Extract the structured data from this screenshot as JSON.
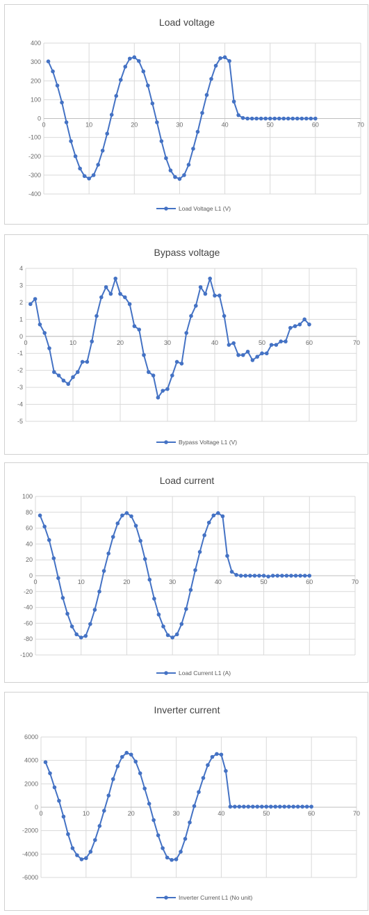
{
  "chart_data": [
    {
      "type": "line",
      "title": "Load voltage",
      "xlim": [
        0,
        70
      ],
      "xticks": [
        0,
        10,
        20,
        30,
        40,
        50,
        60,
        70
      ],
      "ylim": [
        -400,
        400
      ],
      "yticks": [
        400,
        300,
        200,
        100,
        0,
        -100,
        -200,
        -300,
        -400
      ],
      "ytick_labels": [
        "400",
        "300",
        "200",
        "100",
        "0",
        "-100",
        "-200",
        "-300",
        "-400"
      ],
      "grid": true,
      "legend_position": "bottom",
      "color": "#4472C4",
      "series": [
        {
          "name": "Load Voltage L1 (V)",
          "x": [
            1,
            2,
            3,
            4,
            5,
            6,
            7,
            8,
            9,
            10,
            11,
            12,
            13,
            14,
            15,
            16,
            17,
            18,
            19,
            20,
            21,
            22,
            23,
            24,
            25,
            26,
            27,
            28,
            29,
            30,
            31,
            32,
            33,
            34,
            35,
            36,
            37,
            38,
            39,
            40,
            41,
            42,
            43,
            44,
            45,
            46,
            47,
            48,
            49,
            50,
            51,
            52,
            53,
            54,
            55,
            56,
            57,
            58,
            59,
            60
          ],
          "y": [
            303,
            250,
            175,
            85,
            -20,
            -120,
            -200,
            -265,
            -305,
            -318,
            -300,
            -245,
            -170,
            -80,
            20,
            120,
            205,
            275,
            318,
            325,
            305,
            250,
            175,
            80,
            -20,
            -120,
            -210,
            -275,
            -310,
            -320,
            -300,
            -245,
            -160,
            -70,
            30,
            125,
            210,
            280,
            320,
            325,
            305,
            90,
            18,
            3,
            0,
            0,
            0,
            0,
            0,
            0,
            0,
            0,
            0,
            0,
            0,
            0,
            0,
            0,
            0,
            0
          ]
        }
      ]
    },
    {
      "type": "line",
      "title": "Bypass voltage",
      "xlim": [
        0,
        70
      ],
      "xticks": [
        0,
        10,
        20,
        30,
        40,
        50,
        60,
        70
      ],
      "ylim": [
        -5,
        4
      ],
      "yticks": [
        4,
        3,
        2,
        1,
        0,
        -1,
        -2,
        -3,
        -4,
        -5
      ],
      "ytick_labels": [
        "4",
        "3",
        "2",
        "1",
        "0",
        "-1",
        "-2",
        "-3",
        "-4",
        "-5"
      ],
      "grid": true,
      "legend_position": "bottom",
      "color": "#4472C4",
      "series": [
        {
          "name": "Bypass Voltage L1 (V)",
          "x": [
            1,
            2,
            3,
            4,
            5,
            6,
            7,
            8,
            9,
            10,
            11,
            12,
            13,
            14,
            15,
            16,
            17,
            18,
            19,
            20,
            21,
            22,
            23,
            24,
            25,
            26,
            27,
            28,
            29,
            30,
            31,
            32,
            33,
            34,
            35,
            36,
            37,
            38,
            39,
            40,
            41,
            42,
            43,
            44,
            45,
            46,
            47,
            48,
            49,
            50,
            51,
            52,
            53,
            54,
            55,
            56,
            57,
            58,
            59,
            60
          ],
          "y": [
            1.9,
            2.2,
            0.7,
            0.2,
            -0.7,
            -2.1,
            -2.3,
            -2.6,
            -2.8,
            -2.4,
            -2.1,
            -1.5,
            -1.5,
            -0.3,
            1.2,
            2.3,
            2.9,
            2.5,
            3.4,
            2.5,
            2.3,
            1.9,
            0.6,
            0.4,
            -1.1,
            -2.1,
            -2.3,
            -3.6,
            -3.2,
            -3.1,
            -2.3,
            -1.5,
            -1.6,
            0.2,
            1.2,
            1.8,
            2.9,
            2.5,
            3.4,
            2.4,
            2.4,
            1.2,
            -0.5,
            -0.4,
            -1.1,
            -1.1,
            -0.9,
            -1.4,
            -1.2,
            -1.0,
            -1.0,
            -0.5,
            -0.5,
            -0.3,
            -0.3,
            0.5,
            0.6,
            0.7,
            1.0,
            0.7
          ]
        }
      ]
    },
    {
      "type": "line",
      "title": "Load current",
      "xlim": [
        0,
        70
      ],
      "xticks": [
        0,
        10,
        20,
        30,
        40,
        50,
        60,
        70
      ],
      "ylim": [
        -100,
        100
      ],
      "yticks": [
        100,
        80,
        60,
        40,
        20,
        0,
        -20,
        -40,
        -60,
        -80,
        -100
      ],
      "ytick_labels": [
        "100",
        "80",
        "60",
        "40",
        "20",
        "0",
        "-20",
        "-40",
        "-60",
        "-80",
        "-100"
      ],
      "grid": true,
      "legend_position": "bottom",
      "color": "#4472C4",
      "series": [
        {
          "name": "Load Current L1 (A)",
          "x": [
            1,
            2,
            3,
            4,
            5,
            6,
            7,
            8,
            9,
            10,
            11,
            12,
            13,
            14,
            15,
            16,
            17,
            18,
            19,
            20,
            21,
            22,
            23,
            24,
            25,
            26,
            27,
            28,
            29,
            30,
            31,
            32,
            33,
            34,
            35,
            36,
            37,
            38,
            39,
            40,
            41,
            42,
            43,
            44,
            45,
            46,
            47,
            48,
            49,
            50,
            51,
            52,
            53,
            54,
            55,
            56,
            57,
            58,
            59,
            60
          ],
          "y": [
            76,
            62,
            45,
            22,
            -3,
            -28,
            -48,
            -64,
            -74,
            -78,
            -76,
            -61,
            -43,
            -20,
            6,
            28,
            49,
            66,
            76,
            79,
            75,
            63,
            44,
            21,
            -5,
            -29,
            -49,
            -64,
            -75,
            -78,
            -74,
            -61,
            -42,
            -18,
            7,
            30,
            51,
            67,
            76,
            79,
            75,
            25,
            5,
            1,
            0,
            0,
            0,
            0,
            0,
            0,
            -1,
            0,
            0,
            0,
            0,
            0,
            0,
            0,
            0,
            0
          ]
        }
      ]
    },
    {
      "type": "line",
      "title": "Inverter current",
      "xlim": [
        0,
        70
      ],
      "xticks": [
        0,
        10,
        20,
        30,
        40,
        50,
        60,
        70
      ],
      "ylim": [
        -6000,
        6000
      ],
      "yticks": [
        6000,
        4000,
        2000,
        0,
        -2000,
        -4000,
        -6000
      ],
      "ytick_labels": [
        "6000",
        "4000",
        "2000",
        "0",
        "-2000",
        "-4000",
        "-6000"
      ],
      "grid": true,
      "legend_position": "bottom",
      "color": "#4472C4",
      "series": [
        {
          "name": "Inverter Current L1 (No unit)",
          "x": [
            1,
            2,
            3,
            4,
            5,
            6,
            7,
            8,
            9,
            10,
            11,
            12,
            13,
            14,
            15,
            16,
            17,
            18,
            19,
            20,
            21,
            22,
            23,
            24,
            25,
            26,
            27,
            28,
            29,
            30,
            31,
            32,
            33,
            34,
            35,
            36,
            37,
            38,
            39,
            40,
            41,
            42,
            43,
            44,
            45,
            46,
            47,
            48,
            49,
            50,
            51,
            52,
            53,
            54,
            55,
            56,
            57,
            58,
            59,
            60
          ],
          "y": [
            3850,
            2900,
            1700,
            550,
            -800,
            -2300,
            -3500,
            -4100,
            -4450,
            -4350,
            -3800,
            -2800,
            -1600,
            -300,
            1000,
            2400,
            3500,
            4300,
            4650,
            4500,
            3900,
            2900,
            1600,
            300,
            -1100,
            -2400,
            -3500,
            -4300,
            -4500,
            -4450,
            -3800,
            -2700,
            -1300,
            100,
            1300,
            2500,
            3600,
            4300,
            4550,
            4500,
            3100,
            50,
            50,
            50,
            50,
            50,
            50,
            50,
            50,
            50,
            50,
            50,
            50,
            50,
            50,
            50,
            50,
            50,
            50,
            50
          ]
        }
      ]
    }
  ]
}
